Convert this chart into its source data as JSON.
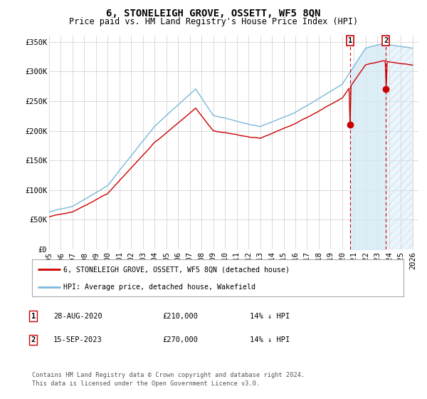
{
  "title": "6, STONELEIGH GROVE, OSSETT, WF5 8QN",
  "subtitle": "Price paid vs. HM Land Registry's House Price Index (HPI)",
  "ylabel_ticks": [
    "£0",
    "£50K",
    "£100K",
    "£150K",
    "£200K",
    "£250K",
    "£300K",
    "£350K"
  ],
  "ytick_values": [
    0,
    50000,
    100000,
    150000,
    200000,
    250000,
    300000,
    350000
  ],
  "ylim": [
    0,
    360000
  ],
  "xlim_start": 1995.0,
  "xlim_end": 2026.5,
  "xticks": [
    1995,
    1996,
    1997,
    1998,
    1999,
    2000,
    2001,
    2002,
    2003,
    2004,
    2005,
    2006,
    2007,
    2008,
    2009,
    2010,
    2011,
    2012,
    2013,
    2014,
    2015,
    2016,
    2017,
    2018,
    2019,
    2020,
    2021,
    2022,
    2023,
    2024,
    2025,
    2026
  ],
  "hpi_color": "#7ab8d9",
  "price_color": "#cc0000",
  "shade_color": "#d0e8f5",
  "marker1_date": 2020.66,
  "marker1_label": "1",
  "marker1_price": 210000,
  "marker2_date": 2023.71,
  "marker2_label": "2",
  "marker2_price": 270000,
  "legend_line1": "6, STONELEIGH GROVE, OSSETT, WF5 8QN (detached house)",
  "legend_line2": "HPI: Average price, detached house, Wakefield",
  "table_rows": [
    {
      "num": "1",
      "date": "28-AUG-2020",
      "price": "£210,000",
      "hpi": "14% ↓ HPI"
    },
    {
      "num": "2",
      "date": "15-SEP-2023",
      "price": "£270,000",
      "hpi": "14% ↓ HPI"
    }
  ],
  "footnote1": "Contains HM Land Registry data © Crown copyright and database right 2024.",
  "footnote2": "This data is licensed under the Open Government Licence v3.0.",
  "bg_color": "#ffffff",
  "grid_color": "#cccccc",
  "title_fontsize": 10,
  "subtitle_fontsize": 8.5,
  "tick_fontsize": 7.5
}
